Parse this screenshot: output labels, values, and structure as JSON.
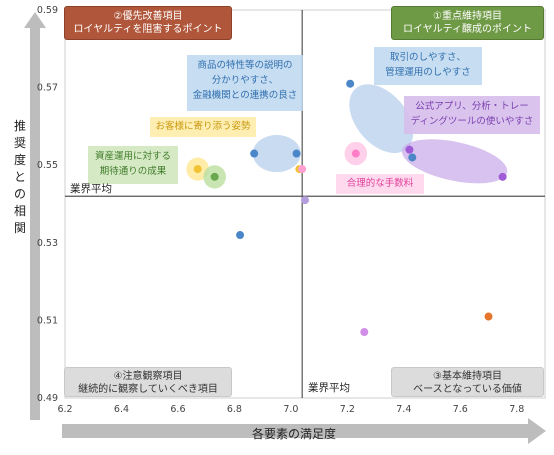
{
  "chart_data": {
    "type": "scatter",
    "xlabel": "各要素の満足度",
    "ylabel": "推奨度との相関",
    "xlim": [
      6.2,
      7.9
    ],
    "ylim": [
      0.49,
      0.59
    ],
    "x_ticks": [
      "6.2",
      "6.4",
      "6.6",
      "6.8",
      "7.0",
      "7.2",
      "7.4",
      "7.6",
      "7.8"
    ],
    "y_ticks": [
      "0.49",
      "0.51",
      "0.53",
      "0.55",
      "0.57",
      "0.59"
    ],
    "reference_lines": {
      "x_average": 7.04,
      "y_average": 0.542,
      "x_label": "業界平均",
      "y_label": "業界平均"
    },
    "grid": false,
    "points": [
      {
        "x": 6.87,
        "y": 0.553,
        "color": "#4a86c8"
      },
      {
        "x": 7.02,
        "y": 0.553,
        "color": "#4a86c8"
      },
      {
        "x": 7.21,
        "y": 0.571,
        "color": "#4a86c8"
      },
      {
        "x": 7.43,
        "y": 0.552,
        "color": "#4a86c8"
      },
      {
        "x": 6.82,
        "y": 0.532,
        "color": "#4a86c8"
      },
      {
        "x": 6.73,
        "y": 0.547,
        "color": "#6aa84f"
      },
      {
        "x": 6.67,
        "y": 0.549,
        "color": "#f1c232"
      },
      {
        "x": 7.03,
        "y": 0.549,
        "color": "#f1c232"
      },
      {
        "x": 7.04,
        "y": 0.549,
        "color": "#ff9fd2"
      },
      {
        "x": 7.23,
        "y": 0.553,
        "color": "#ff7fc7"
      },
      {
        "x": 7.42,
        "y": 0.554,
        "color": "#a05bd6"
      },
      {
        "x": 7.75,
        "y": 0.547,
        "color": "#a05bd6"
      },
      {
        "x": 7.05,
        "y": 0.541,
        "color": "#b39ddb"
      },
      {
        "x": 7.26,
        "y": 0.507,
        "color": "#d08ee6"
      },
      {
        "x": 7.7,
        "y": 0.511,
        "color": "#e4752a"
      }
    ]
  },
  "quadrants": {
    "top_left": {
      "line1": "②優先改善項目",
      "line2": "ロイヤルティを阻害するポイント"
    },
    "top_right": {
      "line1": "①重点維持項目",
      "line2": "ロイヤルティ醸成のポイント"
    },
    "bottom_left": {
      "line1": "④注意観察項目",
      "line2": "継続的に観察していくべき項目"
    },
    "bottom_right": {
      "line1": "③基本維持項目",
      "line2": "ベースとなっている価値"
    }
  },
  "callouts": {
    "products": {
      "line1": "商品の特性等の説明の",
      "line2": "分かりやすさ、",
      "line3": "金融機関との連携の良さ",
      "color": "#2f6fb0"
    },
    "trading": {
      "line1": "取引のしやすさ、",
      "line2": "管理運用のしやすさ",
      "color": "#2f6fb0"
    },
    "app": {
      "line1": "公式アプリ、分析・トレー",
      "line2": "ディングツールの使いやすさ",
      "color": "#7a3fb0"
    },
    "customer": {
      "line1": "お客様に寄り添う姿勢",
      "color": "#c99a10"
    },
    "asset": {
      "line1": "資産運用に対する",
      "line2": "期待通りの成果",
      "color": "#3f7a2a"
    },
    "fees": {
      "line1": "合理的な手数料",
      "color": "#e0409a"
    }
  },
  "avg_labels": {
    "horizontal": "業界平均",
    "vertical": "業界平均"
  }
}
